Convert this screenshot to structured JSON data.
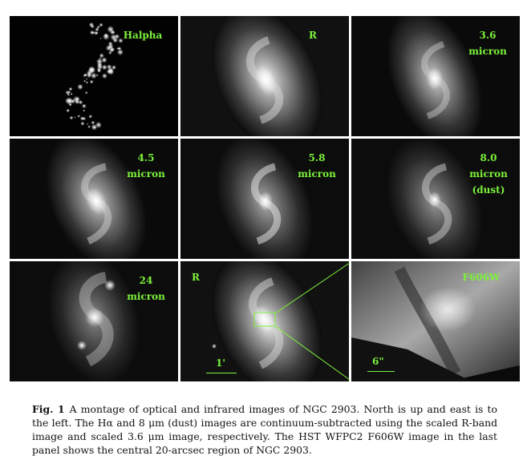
{
  "panels": [
    {
      "id": "halpha",
      "label_lines": [
        "Halpha"
      ]
    },
    {
      "id": "r",
      "label_lines": [
        "R"
      ]
    },
    {
      "id": "i36",
      "label_lines": [
        "3.6",
        "micron"
      ]
    },
    {
      "id": "i45",
      "label_lines": [
        "4.5",
        "micron"
      ]
    },
    {
      "id": "i58",
      "label_lines": [
        "5.8",
        "micron"
      ]
    },
    {
      "id": "i80",
      "label_lines": [
        "8.0",
        "micron",
        "(dust)"
      ]
    },
    {
      "id": "i24",
      "label_lines": [
        "24",
        "micron"
      ]
    },
    {
      "id": "rzoom",
      "label_lines": [
        "R"
      ],
      "scale_label": "1'"
    },
    {
      "id": "hst",
      "label_lines": [
        "F606W"
      ],
      "scale_label": "6\""
    }
  ],
  "colors": {
    "label": "#7cf23a",
    "background": "#050505"
  },
  "caption": {
    "fig_label": "Fig. 1",
    "text": "A montage of optical and infrared images of NGC 2903. North is up and east is to the left. The Hα and 8 μm (dust) images are continuum-subtracted using the scaled R-band image and scaled 3.6 μm image, respectively. The HST WFPC2 F606W image in the last panel shows the central 20-arcsec region of NGC 2903."
  }
}
